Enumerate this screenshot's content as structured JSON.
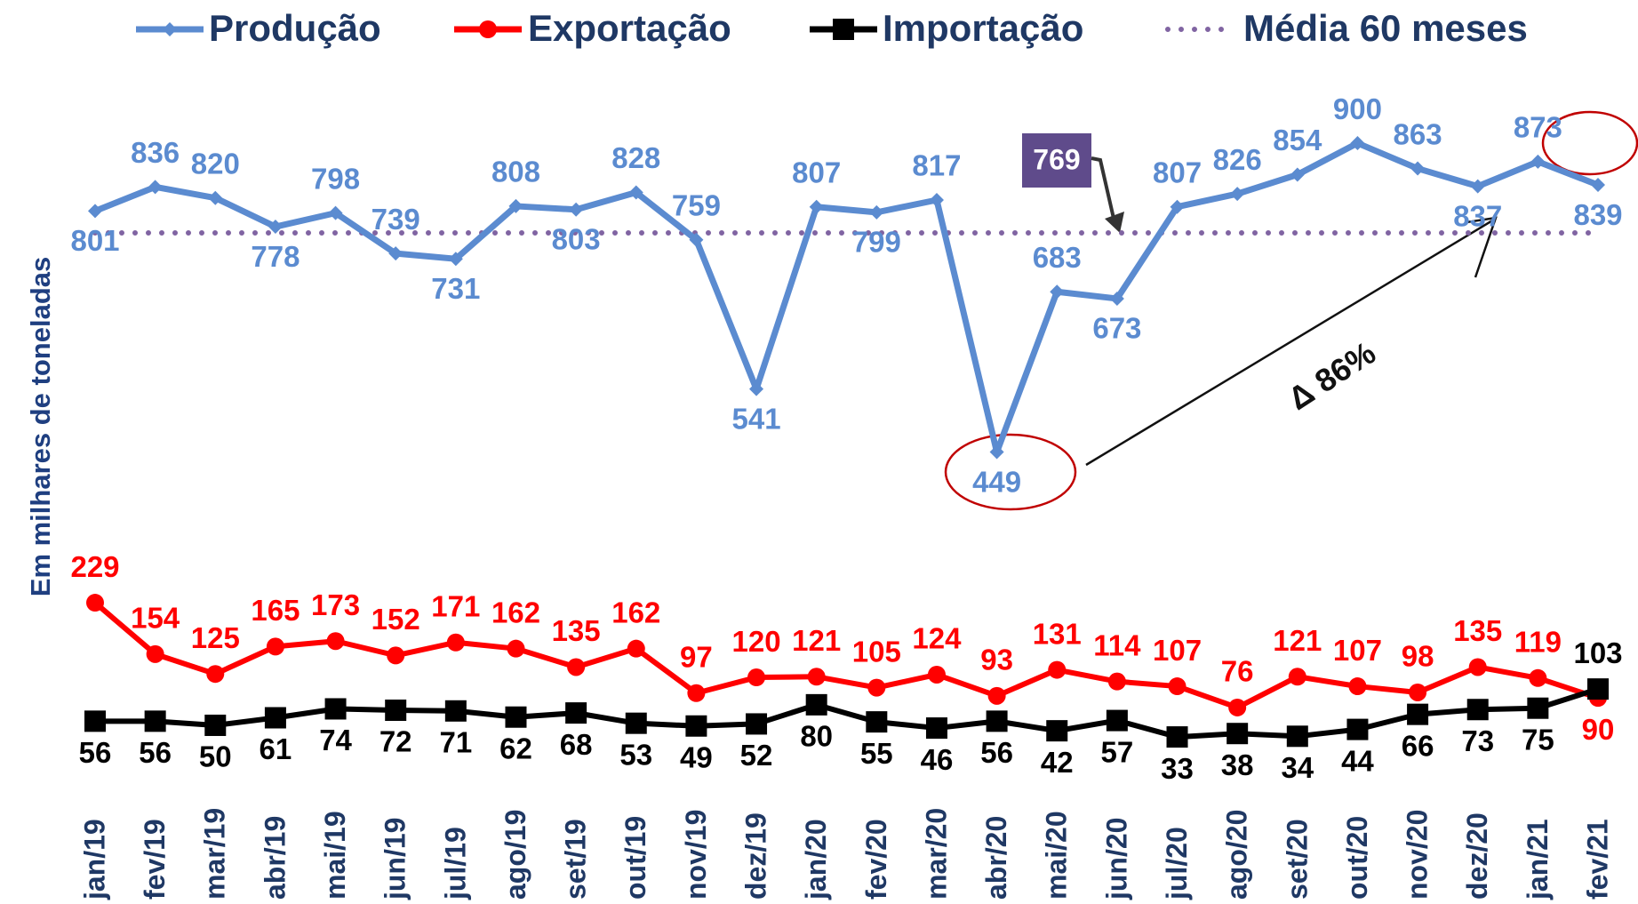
{
  "chart_data": {
    "type": "line",
    "y_label": "Em milhares de toneladas",
    "categories": [
      "jan/19",
      "fev/19",
      "mar/19",
      "abr/19",
      "mai/19",
      "jun/19",
      "jul/19",
      "ago/19",
      "set/19",
      "out/19",
      "nov/19",
      "dez/19",
      "jan/20",
      "fev/20",
      "mar/20",
      "abr/20",
      "mai/20",
      "jun/20",
      "jul/20",
      "ago/20",
      "set/20",
      "out/20",
      "nov/20",
      "dez/20",
      "jan/21",
      "fev/21"
    ],
    "series": [
      {
        "name": "Produção",
        "color": "#5b8bd0",
        "marker": "diamond",
        "values": [
          801,
          836,
          820,
          778,
          798,
          739,
          731,
          808,
          803,
          828,
          759,
          541,
          807,
          799,
          817,
          449,
          683,
          673,
          807,
          826,
          854,
          900,
          863,
          837,
          873,
          839
        ]
      },
      {
        "name": "Exportação",
        "color": "#ff0000",
        "marker": "circle",
        "values": [
          229,
          154,
          125,
          165,
          173,
          152,
          171,
          162,
          135,
          162,
          97,
          120,
          121,
          105,
          124,
          93,
          131,
          114,
          107,
          76,
          121,
          107,
          98,
          135,
          119,
          90
        ]
      },
      {
        "name": "Importação",
        "color": "#000000",
        "marker": "square",
        "values": [
          56,
          56,
          50,
          61,
          74,
          72,
          71,
          62,
          68,
          53,
          49,
          52,
          80,
          55,
          46,
          56,
          42,
          57,
          33,
          38,
          34,
          44,
          66,
          73,
          75,
          103
        ]
      }
    ],
    "reference_line": {
      "name": "Média 60 meses",
      "value": 769,
      "color": "#8064a2"
    },
    "annotation": "Δ 86%",
    "ylim": [
      0,
      1000
    ],
    "grid": false
  }
}
